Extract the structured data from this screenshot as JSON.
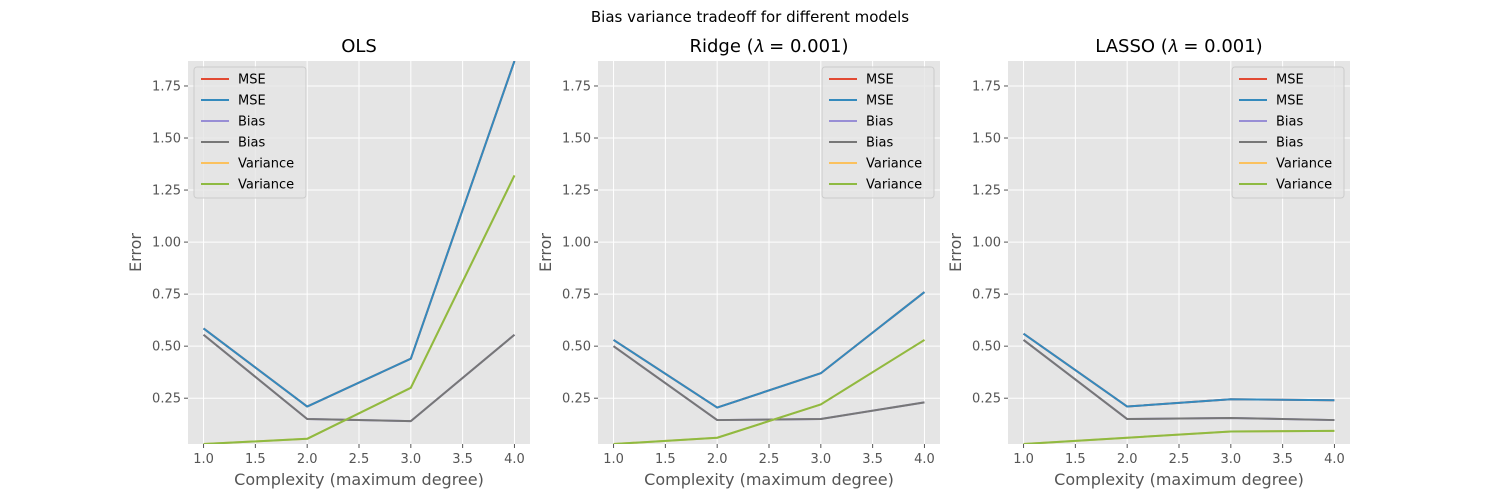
{
  "figure": {
    "suptitle": "Bias variance tradeoff for different models"
  },
  "chart_data": [
    {
      "type": "line",
      "title": "OLS",
      "xlabel": "Complexity  (maximum degree)",
      "ylabel": "Error",
      "xlim": [
        0.85,
        4.15
      ],
      "ylim": [
        0.03,
        1.87
      ],
      "xticks": [
        "1.0",
        "1.5",
        "2.0",
        "2.5",
        "3.0",
        "3.5",
        "4.0"
      ],
      "yticks": [
        "0.25",
        "0.50",
        "0.75",
        "1.00",
        "1.25",
        "1.50",
        "1.75"
      ],
      "grid": true,
      "legend_position": "upper-left",
      "x": [
        1.0,
        2.0,
        3.0,
        4.0
      ],
      "series": [
        {
          "name": "MSE",
          "color": "#E24A33",
          "values": [
            0.585,
            0.21,
            0.44,
            1.87
          ]
        },
        {
          "name": "MSE",
          "color": "#348ABD",
          "values": [
            0.585,
            0.21,
            0.44,
            1.87
          ]
        },
        {
          "name": "Bias",
          "color": "#988ED5",
          "values": [
            0.555,
            0.15,
            0.14,
            0.555
          ]
        },
        {
          "name": "Bias",
          "color": "#777777",
          "values": [
            0.555,
            0.15,
            0.14,
            0.555
          ]
        },
        {
          "name": "Variance",
          "color": "#FBC15E",
          "values": [
            0.03,
            0.055,
            0.3,
            1.32
          ]
        },
        {
          "name": "Variance",
          "color": "#8EBA42",
          "values": [
            0.03,
            0.055,
            0.3,
            1.32
          ]
        }
      ]
    },
    {
      "type": "line",
      "title": "Ridge (𝜆 = 0.001)",
      "xlabel": "Complexity  (maximum degree)",
      "ylabel": "Error",
      "xlim": [
        0.85,
        4.15
      ],
      "ylim": [
        0.03,
        1.87
      ],
      "xticks": [
        "1.0",
        "1.5",
        "2.0",
        "2.5",
        "3.0",
        "3.5",
        "4.0"
      ],
      "yticks": [
        "0.25",
        "0.50",
        "0.75",
        "1.00",
        "1.25",
        "1.50",
        "1.75"
      ],
      "grid": true,
      "legend_position": "upper-right",
      "x": [
        1.0,
        2.0,
        3.0,
        4.0
      ],
      "series": [
        {
          "name": "MSE",
          "color": "#E24A33",
          "values": [
            0.53,
            0.205,
            0.37,
            0.76
          ]
        },
        {
          "name": "MSE",
          "color": "#348ABD",
          "values": [
            0.53,
            0.205,
            0.37,
            0.76
          ]
        },
        {
          "name": "Bias",
          "color": "#988ED5",
          "values": [
            0.5,
            0.145,
            0.15,
            0.23
          ]
        },
        {
          "name": "Bias",
          "color": "#777777",
          "values": [
            0.5,
            0.145,
            0.15,
            0.23
          ]
        },
        {
          "name": "Variance",
          "color": "#FBC15E",
          "values": [
            0.03,
            0.06,
            0.22,
            0.53
          ]
        },
        {
          "name": "Variance",
          "color": "#8EBA42",
          "values": [
            0.03,
            0.06,
            0.22,
            0.53
          ]
        }
      ]
    },
    {
      "type": "line",
      "title": "LASSO (𝜆 = 0.001)",
      "xlabel": "Complexity  (maximum degree)",
      "ylabel": "Error",
      "xlim": [
        0.85,
        4.15
      ],
      "ylim": [
        0.03,
        1.87
      ],
      "xticks": [
        "1.0",
        "1.5",
        "2.0",
        "2.5",
        "3.0",
        "3.5",
        "4.0"
      ],
      "yticks": [
        "0.25",
        "0.50",
        "0.75",
        "1.00",
        "1.25",
        "1.50",
        "1.75"
      ],
      "grid": true,
      "legend_position": "upper-right",
      "x": [
        1.0,
        2.0,
        3.0,
        4.0
      ],
      "series": [
        {
          "name": "MSE",
          "color": "#E24A33",
          "values": [
            0.56,
            0.21,
            0.245,
            0.24
          ]
        },
        {
          "name": "MSE",
          "color": "#348ABD",
          "values": [
            0.56,
            0.21,
            0.245,
            0.24
          ]
        },
        {
          "name": "Bias",
          "color": "#988ED5",
          "values": [
            0.53,
            0.15,
            0.155,
            0.145
          ]
        },
        {
          "name": "Bias",
          "color": "#777777",
          "values": [
            0.53,
            0.15,
            0.155,
            0.145
          ]
        },
        {
          "name": "Variance",
          "color": "#FBC15E",
          "values": [
            0.03,
            0.06,
            0.09,
            0.093
          ]
        },
        {
          "name": "Variance",
          "color": "#8EBA42",
          "values": [
            0.03,
            0.06,
            0.09,
            0.093
          ]
        }
      ]
    }
  ]
}
